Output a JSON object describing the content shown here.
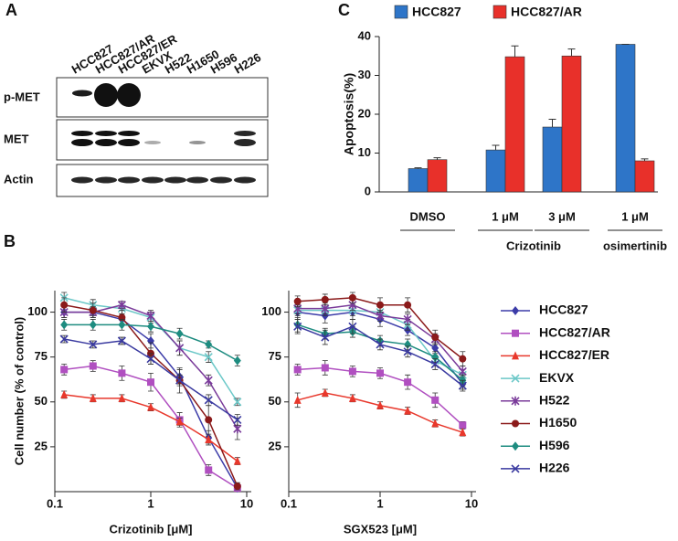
{
  "panel_labels": [
    "A",
    "B",
    "C"
  ],
  "blot": {
    "lanes": [
      "HCC827",
      "HCC827/AR",
      "HCC827/ER",
      "EKVX",
      "H522",
      "H1650",
      "H596",
      "H226"
    ],
    "rows": [
      "p-MET",
      "MET",
      "Actin"
    ]
  },
  "chart_data": [
    {
      "type": "bar",
      "ylabel": "Apoptosis(%)",
      "categories": [
        "DMSO",
        "1 μM",
        "3 μM",
        "1 μM"
      ],
      "category_groups": [
        null,
        "Crizotinib",
        "Crizotinib",
        "osimertinib"
      ],
      "series": [
        {
          "name": "HCC827",
          "color": "#2e75c8",
          "values": [
            6,
            10.8,
            16.7,
            38
          ],
          "errors": [
            0.2,
            1.2,
            2,
            0
          ]
        },
        {
          "name": "HCC827/AR",
          "color": "#e8302a",
          "values": [
            8.3,
            34.8,
            35,
            8
          ],
          "errors": [
            0.5,
            2.8,
            1.8,
            0.5
          ]
        }
      ],
      "ylim": [
        0,
        40
      ],
      "yticks": [
        0,
        10,
        20,
        30,
        40
      ]
    },
    {
      "type": "line",
      "xlabel": "Crizotinib [μM]",
      "ylabel": "Cell number (% of control)",
      "x": [
        0.125,
        0.25,
        0.5,
        1,
        2,
        4,
        8
      ],
      "xscale": "log",
      "xlim": [
        0.1,
        10
      ],
      "xticks": [
        0.1,
        1,
        10
      ],
      "ylim": [
        0,
        112
      ],
      "yticks": [
        25,
        50,
        75,
        100
      ],
      "series": [
        {
          "name": "HCC827",
          "color": "#3b3ba8",
          "marker": "diamond",
          "values": [
            100,
            100,
            96,
            84,
            64,
            30,
            2
          ],
          "errors": [
            3,
            2,
            3,
            4,
            4,
            4,
            1
          ]
        },
        {
          "name": "HCC827/AR",
          "color": "#b04fc0",
          "marker": "square",
          "values": [
            68,
            70,
            66,
            61,
            40,
            12,
            2
          ],
          "errors": [
            3,
            3,
            4,
            5,
            4,
            3,
            1
          ]
        },
        {
          "name": "HCC827/ER",
          "color": "#e8382c",
          "marker": "triangle",
          "values": [
            54,
            52,
            52,
            47,
            39,
            29,
            17
          ],
          "errors": [
            2,
            2,
            2,
            2,
            2,
            2,
            2
          ]
        },
        {
          "name": "EKVX",
          "color": "#6cc8c8",
          "marker": "x",
          "values": [
            108,
            104,
            102,
            97,
            80,
            75,
            50
          ],
          "errors": [
            3,
            3,
            3,
            3,
            4,
            3,
            2
          ]
        },
        {
          "name": "H522",
          "color": "#7a3b9a",
          "marker": "asterisk",
          "values": [
            100,
            100,
            104,
            98,
            80,
            62,
            35
          ],
          "errors": [
            3,
            3,
            2,
            3,
            4,
            3,
            6
          ]
        },
        {
          "name": "H1650",
          "color": "#8b1a1a",
          "marker": "circle",
          "values": [
            104,
            101,
            97,
            77,
            62,
            40,
            3
          ],
          "errors": [
            4,
            4,
            4,
            6,
            7,
            8,
            2
          ]
        },
        {
          "name": "H596",
          "color": "#1e8c80",
          "marker": "diamond",
          "values": [
            93,
            93,
            93,
            92,
            88,
            82,
            73
          ],
          "errors": [
            3,
            3,
            3,
            3,
            3,
            2,
            3
          ]
        },
        {
          "name": "H226",
          "color": "#3a3aa0",
          "marker": "x",
          "values": [
            85,
            82,
            84,
            74,
            62,
            51,
            40
          ],
          "errors": [
            2,
            2,
            2,
            3,
            3,
            3,
            3
          ]
        }
      ]
    },
    {
      "type": "line",
      "xlabel": "SGX523 [μM]",
      "x": [
        0.125,
        0.25,
        0.5,
        1,
        2,
        4,
        8
      ],
      "xscale": "log",
      "xlim": [
        0.1,
        10
      ],
      "xticks": [
        0.1,
        1,
        10
      ],
      "ylim": [
        0,
        112
      ],
      "yticks": [
        25,
        50,
        75,
        100
      ],
      "series": [
        {
          "color": "#3b3ba8",
          "marker": "diamond",
          "values": [
            100,
            98,
            100,
            96,
            90,
            80,
            60
          ],
          "errors": [
            4,
            4,
            4,
            4,
            3,
            3,
            3
          ]
        },
        {
          "color": "#b04fc0",
          "marker": "square",
          "values": [
            68,
            69,
            67,
            66,
            61,
            51,
            37
          ],
          "errors": [
            3,
            4,
            3,
            3,
            4,
            4,
            2
          ]
        },
        {
          "color": "#e8382c",
          "marker": "triangle",
          "values": [
            51,
            55,
            52,
            48,
            45,
            38,
            33
          ],
          "errors": [
            4,
            2,
            2,
            2,
            2,
            2,
            2
          ]
        },
        {
          "color": "#6cc8c8",
          "marker": "x",
          "values": [
            101,
            101,
            101,
            100,
            93,
            73,
            65
          ],
          "errors": [
            3,
            3,
            3,
            3,
            3,
            3,
            3
          ]
        },
        {
          "color": "#7a3b9a",
          "marker": "asterisk",
          "values": [
            102,
            102,
            104,
            98,
            96,
            85,
            67
          ],
          "errors": [
            3,
            3,
            3,
            3,
            3,
            3,
            3
          ]
        },
        {
          "color": "#8b1a1a",
          "marker": "circle",
          "values": [
            106,
            107,
            108,
            104,
            104,
            86,
            74
          ],
          "errors": [
            3,
            3,
            3,
            4,
            4,
            4,
            4
          ]
        },
        {
          "color": "#1e8c80",
          "marker": "diamond",
          "values": [
            93,
            88,
            89,
            84,
            82,
            75,
            62
          ],
          "errors": [
            4,
            3,
            3,
            3,
            3,
            3,
            3
          ]
        },
        {
          "color": "#3a3aa0",
          "marker": "x",
          "values": [
            92,
            86,
            92,
            82,
            78,
            71,
            59
          ],
          "errors": [
            4,
            4,
            4,
            3,
            3,
            3,
            3
          ]
        }
      ]
    }
  ]
}
